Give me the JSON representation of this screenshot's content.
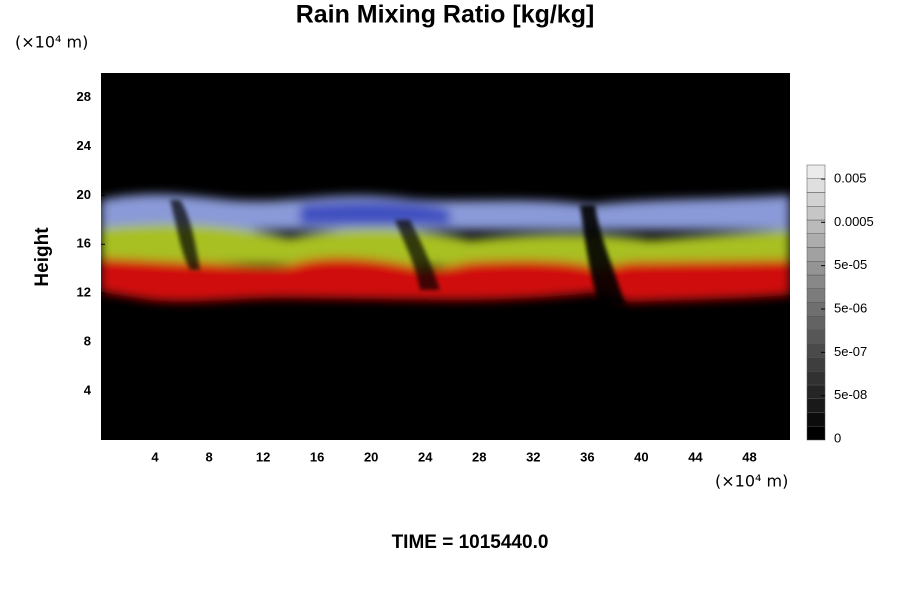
{
  "chart_data": {
    "type": "field",
    "title": "Rain Mixing Ratio [kg/kg]",
    "y_unit": "(×10⁴ m)",
    "x_unit": "(×10⁴ m)",
    "ylabel": "Height",
    "xlim": [
      0,
      51
    ],
    "ylim": [
      0,
      30
    ],
    "xticks": [
      4,
      8,
      12,
      16,
      20,
      24,
      28,
      32,
      36,
      40,
      44,
      48
    ],
    "yticks": [
      4,
      8,
      12,
      16,
      20,
      24,
      28
    ],
    "colorbar_ticks": [
      0,
      {
        "value": 5e-08,
        "label": "5e-08"
      },
      {
        "value": 5e-07,
        "label": "5e-07"
      },
      {
        "value": 5e-06,
        "label": "5e-06"
      },
      {
        "value": 5e-05,
        "label": "5e-05"
      },
      0.0005,
      0.005
    ],
    "time_label": "TIME = 1015440.0"
  }
}
